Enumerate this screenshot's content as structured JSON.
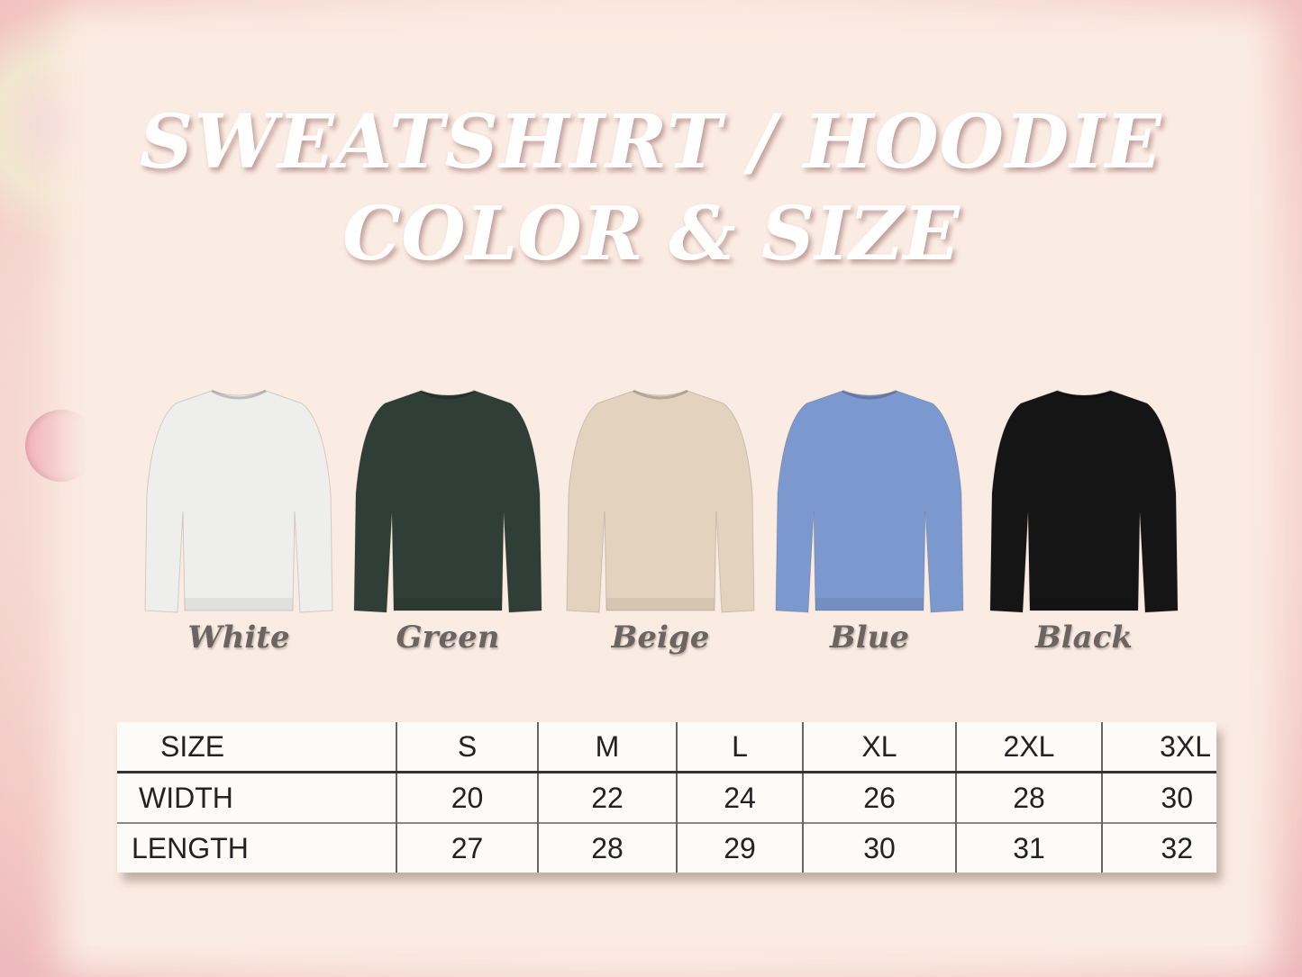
{
  "title": {
    "line1": "SWEATSHIRT / HOODIE",
    "line2": "COLOR & SIZE"
  },
  "colors": [
    {
      "name": "White",
      "hex": "#eeeeec"
    },
    {
      "name": "Green",
      "hex": "#2f3e36"
    },
    {
      "name": "Beige",
      "hex": "#e3d2bd"
    },
    {
      "name": "Blue",
      "hex": "#7b98cf"
    },
    {
      "name": "Black",
      "hex": "#151515"
    }
  ],
  "size_table": {
    "headers": [
      "SIZE",
      "S",
      "M",
      "L",
      "XL",
      "2XL",
      "3XL"
    ],
    "rows": [
      [
        "WIDTH",
        "20",
        "22",
        "24",
        "26",
        "28",
        "30"
      ],
      [
        "LENGTH",
        "27",
        "28",
        "29",
        "30",
        "31",
        "32"
      ]
    ]
  }
}
